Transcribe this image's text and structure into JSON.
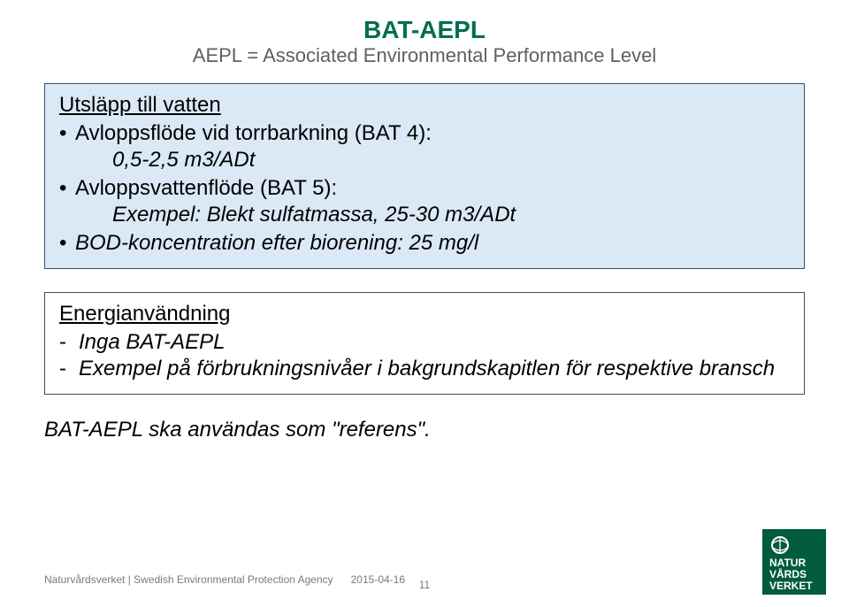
{
  "title": {
    "main": "BAT-AEPL",
    "sub": "AEPL = Associated Environmental Performance Level",
    "main_color": "#006e52",
    "sub_color": "#5f5f5f",
    "main_fontsize": 28,
    "sub_fontsize": 22
  },
  "box1": {
    "background": "#dbe8f6",
    "border_color": "#3a4f6b",
    "text_color": "#000000",
    "fontsize": 24,
    "heading": "Utsläpp till vatten",
    "bullets": [
      {
        "text": "Avloppsflöde vid torrbarkning (BAT 4):",
        "italic": false
      },
      {
        "indent": "0,5-2,5 m3/ADt",
        "italic": true
      },
      {
        "text": "Avloppsvattenflöde (BAT 5):",
        "italic": false
      },
      {
        "indent": "Exempel: Blekt sulfatmassa, 25-30 m3/ADt",
        "italic": true
      },
      {
        "text": "BOD-koncentration efter biorening: 25 mg/l",
        "italic": true
      }
    ]
  },
  "box2": {
    "background": "#ffffff",
    "border_color": "#3a4f6b",
    "text_color": "#000000",
    "fontsize": 24,
    "heading": "Energianvändning",
    "dashes": [
      {
        "text": "Inga BAT-AEPL"
      },
      {
        "text": "Exempel på förbrukningsnivåer i bakgrundskapitlen för respektive bransch"
      }
    ]
  },
  "closing": {
    "text": "BAT-AEPL ska användas som \"referens\".",
    "italic": true,
    "fontsize": 24,
    "color": "#000000"
  },
  "footer": {
    "org": "Naturvårdsverket | Swedish Environmental Protection Agency",
    "date": "2015-04-16",
    "color": "#7a7a7a"
  },
  "page_number": "11",
  "page_number_color": "#7a7a7a",
  "logo": {
    "bg": "#005b3f",
    "text_lines": [
      "NATUR",
      "VÅRDS",
      "VERKET"
    ],
    "text_color": "#ffffff"
  }
}
